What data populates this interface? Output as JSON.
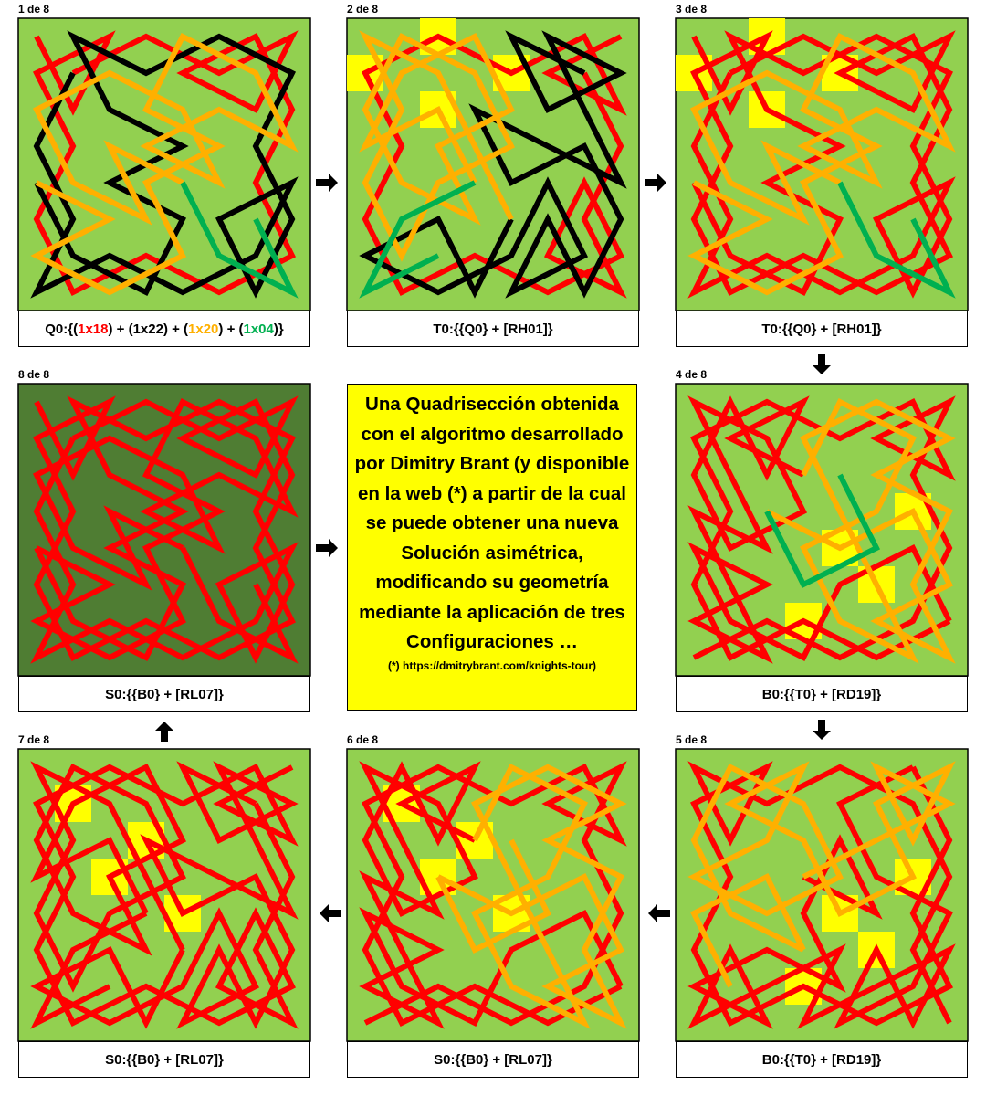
{
  "panels": [
    {
      "label": "1 de 8",
      "caption": [
        {
          "text": "Q0:{("
        },
        {
          "text": "1x18",
          "color": "#ff0000"
        },
        {
          "text": ") + (1x22) + ("
        },
        {
          "text": "1x20",
          "color": "#ffb000"
        },
        {
          "text": ") + ("
        },
        {
          "text": "1x04",
          "color": "#00b050"
        },
        {
          "text": ")}"
        }
      ]
    },
    {
      "label": "2 de 8",
      "caption": [
        {
          "text": "T0:{{Q0} + [RH01]}"
        }
      ]
    },
    {
      "label": "3 de 8",
      "caption": [
        {
          "text": "T0:{{Q0} + [RH01]}"
        }
      ]
    },
    {
      "label": "4 de 8",
      "caption": [
        {
          "text": "B0:{{T0} + [RD19]}"
        }
      ]
    },
    {
      "label": "5 de 8",
      "caption": [
        {
          "text": "B0:{{T0} + [RD19]}"
        }
      ]
    },
    {
      "label": "6 de 8",
      "caption": [
        {
          "text": "S0:{{B0} + [RL07]}"
        }
      ]
    },
    {
      "label": "7 de 8",
      "caption": [
        {
          "text": "S0:{{B0} + [RL07]}"
        }
      ]
    },
    {
      "label": "8 de 8",
      "caption": [
        {
          "text": "S0:{{B0} + [RL07]}"
        }
      ]
    }
  ],
  "info": {
    "text": "Una Quadrisección obtenida con el algoritmo desarrollado por Dimitry Brant (y disponible en la web (*) a partir de la cual se puede obtener una nueva Solución asimétrica, modificando su geometría mediante la aplicación de tres Configuraciones …",
    "note": "(*) https://dmitrybrant.com/knights-tour)"
  }
}
